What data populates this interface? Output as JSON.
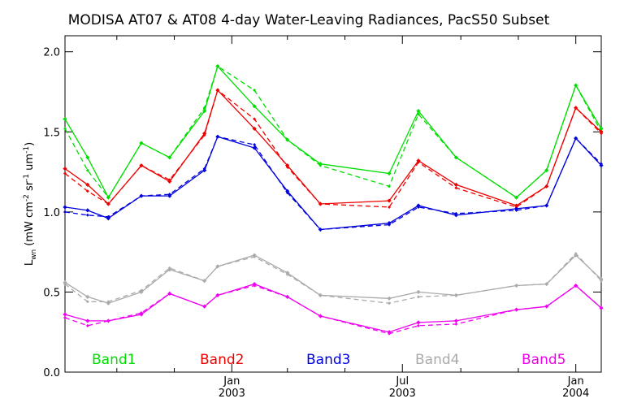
{
  "chart_data": {
    "type": "line",
    "title": "MODISA AT07 & AT08 4-day Water-Leaving Radiances, PacS50 Subset",
    "ylabel": "L_wn (mW cm^-2 sr^-1 um^-1)",
    "ylabel_parts": {
      "main": "L",
      "sub": "wn",
      "open": " (mW cm",
      "sup1": "-2",
      "mid1": " sr",
      "sup2": "-1",
      "mid2": " um",
      "sup3": "-1",
      "close": ")"
    },
    "xlim": [
      "2002-07-08",
      "2004-01-28"
    ],
    "ylim": [
      0.0,
      2.1
    ],
    "y_ticks": [
      {
        "value": 0.0,
        "label": "0.0"
      },
      {
        "value": 0.5,
        "label": "0.5"
      },
      {
        "value": 1.0,
        "label": "1.0"
      },
      {
        "value": 1.5,
        "label": "1.5"
      },
      {
        "value": 2.0,
        "label": "2.0"
      }
    ],
    "x_major_ticks": [
      {
        "date": "2003-01-01",
        "month": "Jan",
        "year": "2003"
      },
      {
        "date": "2003-07-01",
        "month": "Jul",
        "year": "2003"
      },
      {
        "date": "2004-01-01",
        "month": "Jan",
        "year": "2004"
      }
    ],
    "x_minor_ticks": [
      "2002-09-01",
      "2002-11-01",
      "2003-03-01",
      "2003-05-01",
      "2003-09-01",
      "2003-11-01"
    ],
    "grid": false,
    "legend_position": "bottom",
    "series": [
      {
        "name": "Band1",
        "color": "#00dd00",
        "solid": [
          [
            "2002-07-08",
            1.58
          ],
          [
            "2002-08-01",
            1.34
          ],
          [
            "2002-08-23",
            1.09
          ],
          [
            "2002-09-27",
            1.43
          ],
          [
            "2002-10-27",
            1.34
          ],
          [
            "2002-12-03",
            1.63
          ],
          [
            "2002-12-17",
            1.91
          ],
          [
            "2003-01-25",
            1.66
          ],
          [
            "2003-03-01",
            1.45
          ],
          [
            "2003-04-05",
            1.3
          ],
          [
            "2003-06-17",
            1.24
          ],
          [
            "2003-07-18",
            1.63
          ],
          [
            "2003-08-27",
            1.34
          ],
          [
            "2003-10-30",
            1.09
          ],
          [
            "2003-12-01",
            1.26
          ],
          [
            "2004-01-01",
            1.79
          ],
          [
            "2004-01-28",
            1.52
          ]
        ],
        "dashed": [
          [
            "2002-07-08",
            1.52
          ],
          [
            "2002-08-01",
            1.26
          ],
          [
            "2002-08-23",
            1.09
          ],
          [
            "2002-09-27",
            1.43
          ],
          [
            "2002-10-27",
            1.34
          ],
          [
            "2002-12-03",
            1.65
          ],
          [
            "2002-12-17",
            1.91
          ],
          [
            "2003-01-25",
            1.76
          ],
          [
            "2003-03-01",
            1.45
          ],
          [
            "2003-04-05",
            1.29
          ],
          [
            "2003-06-17",
            1.16
          ],
          [
            "2003-07-18",
            1.61
          ],
          [
            "2003-08-27",
            1.34
          ],
          [
            "2003-10-30",
            1.09
          ],
          [
            "2003-12-01",
            1.26
          ],
          [
            "2004-01-01",
            1.79
          ],
          [
            "2004-01-28",
            1.5
          ]
        ]
      },
      {
        "name": "Band2",
        "color": "#ee0000",
        "solid": [
          [
            "2002-07-08",
            1.27
          ],
          [
            "2002-08-01",
            1.17
          ],
          [
            "2002-08-23",
            1.05
          ],
          [
            "2002-09-27",
            1.29
          ],
          [
            "2002-10-27",
            1.19
          ],
          [
            "2002-12-03",
            1.49
          ],
          [
            "2002-12-17",
            1.76
          ],
          [
            "2003-01-25",
            1.52
          ],
          [
            "2003-03-01",
            1.29
          ],
          [
            "2003-04-05",
            1.05
          ],
          [
            "2003-06-17",
            1.07
          ],
          [
            "2003-07-18",
            1.32
          ],
          [
            "2003-08-27",
            1.17
          ],
          [
            "2003-10-30",
            1.04
          ],
          [
            "2003-12-01",
            1.16
          ],
          [
            "2004-01-01",
            1.65
          ],
          [
            "2004-01-28",
            1.5
          ]
        ],
        "dashed": [
          [
            "2002-07-08",
            1.24
          ],
          [
            "2002-08-01",
            1.13
          ],
          [
            "2002-08-23",
            1.05
          ],
          [
            "2002-09-27",
            1.29
          ],
          [
            "2002-10-27",
            1.2
          ],
          [
            "2002-12-03",
            1.48
          ],
          [
            "2002-12-17",
            1.76
          ],
          [
            "2003-01-25",
            1.58
          ],
          [
            "2003-03-01",
            1.28
          ],
          [
            "2003-04-05",
            1.05
          ],
          [
            "2003-06-17",
            1.03
          ],
          [
            "2003-07-18",
            1.31
          ],
          [
            "2003-08-27",
            1.15
          ],
          [
            "2003-10-30",
            1.03
          ],
          [
            "2003-12-01",
            1.16
          ],
          [
            "2004-01-01",
            1.65
          ],
          [
            "2004-01-28",
            1.49
          ]
        ]
      },
      {
        "name": "Band3",
        "color": "#0000dd",
        "solid": [
          [
            "2002-07-08",
            1.03
          ],
          [
            "2002-08-01",
            1.01
          ],
          [
            "2002-08-23",
            0.96
          ],
          [
            "2002-09-27",
            1.1
          ],
          [
            "2002-10-27",
            1.1
          ],
          [
            "2002-12-03",
            1.26
          ],
          [
            "2002-12-17",
            1.47
          ],
          [
            "2003-01-25",
            1.4
          ],
          [
            "2003-03-01",
            1.13
          ],
          [
            "2003-04-05",
            0.89
          ],
          [
            "2003-06-17",
            0.93
          ],
          [
            "2003-07-18",
            1.04
          ],
          [
            "2003-08-27",
            0.98
          ],
          [
            "2003-10-30",
            1.02
          ],
          [
            "2003-12-01",
            1.04
          ],
          [
            "2004-01-01",
            1.46
          ],
          [
            "2004-01-28",
            1.29
          ]
        ],
        "dashed": [
          [
            "2002-07-08",
            1.0
          ],
          [
            "2002-08-01",
            0.98
          ],
          [
            "2002-08-23",
            0.97
          ],
          [
            "2002-09-27",
            1.1
          ],
          [
            "2002-10-27",
            1.11
          ],
          [
            "2002-12-03",
            1.27
          ],
          [
            "2002-12-17",
            1.47
          ],
          [
            "2003-01-25",
            1.42
          ],
          [
            "2003-03-01",
            1.12
          ],
          [
            "2003-04-05",
            0.89
          ],
          [
            "2003-06-17",
            0.92
          ],
          [
            "2003-07-18",
            1.03
          ],
          [
            "2003-08-27",
            0.99
          ],
          [
            "2003-10-30",
            1.01
          ],
          [
            "2003-12-01",
            1.04
          ],
          [
            "2004-01-01",
            1.46
          ],
          [
            "2004-01-28",
            1.3
          ]
        ]
      },
      {
        "name": "Band4",
        "color": "#aaaaaa",
        "solid": [
          [
            "2002-07-08",
            0.56
          ],
          [
            "2002-08-01",
            0.47
          ],
          [
            "2002-08-23",
            0.43
          ],
          [
            "2002-09-27",
            0.5
          ],
          [
            "2002-10-27",
            0.64
          ],
          [
            "2002-12-03",
            0.57
          ],
          [
            "2002-12-17",
            0.66
          ],
          [
            "2003-01-25",
            0.73
          ],
          [
            "2003-03-01",
            0.62
          ],
          [
            "2003-04-05",
            0.48
          ],
          [
            "2003-06-17",
            0.46
          ],
          [
            "2003-07-18",
            0.5
          ],
          [
            "2003-08-27",
            0.48
          ],
          [
            "2003-10-30",
            0.54
          ],
          [
            "2003-12-01",
            0.55
          ],
          [
            "2004-01-01",
            0.73
          ],
          [
            "2004-01-28",
            0.58
          ]
        ],
        "dashed": [
          [
            "2002-07-08",
            0.55
          ],
          [
            "2002-08-01",
            0.44
          ],
          [
            "2002-08-23",
            0.44
          ],
          [
            "2002-09-27",
            0.51
          ],
          [
            "2002-10-27",
            0.65
          ],
          [
            "2002-12-03",
            0.57
          ],
          [
            "2002-12-17",
            0.66
          ],
          [
            "2003-01-25",
            0.72
          ],
          [
            "2003-03-01",
            0.61
          ],
          [
            "2003-04-05",
            0.48
          ],
          [
            "2003-06-17",
            0.43
          ],
          [
            "2003-07-18",
            0.47
          ],
          [
            "2003-08-27",
            0.48
          ],
          [
            "2003-10-30",
            0.54
          ],
          [
            "2003-12-01",
            0.55
          ],
          [
            "2004-01-01",
            0.74
          ],
          [
            "2004-01-28",
            0.57
          ]
        ]
      },
      {
        "name": "Band5",
        "color": "#ee00ee",
        "solid": [
          [
            "2002-07-08",
            0.36
          ],
          [
            "2002-08-01",
            0.32
          ],
          [
            "2002-08-23",
            0.32
          ],
          [
            "2002-09-27",
            0.36
          ],
          [
            "2002-10-27",
            0.49
          ],
          [
            "2002-12-03",
            0.41
          ],
          [
            "2002-12-17",
            0.48
          ],
          [
            "2003-01-25",
            0.55
          ],
          [
            "2003-03-01",
            0.47
          ],
          [
            "2003-04-05",
            0.35
          ],
          [
            "2003-06-17",
            0.25
          ],
          [
            "2003-07-18",
            0.31
          ],
          [
            "2003-08-27",
            0.32
          ],
          [
            "2003-10-30",
            0.39
          ],
          [
            "2003-12-01",
            0.41
          ],
          [
            "2004-01-01",
            0.54
          ],
          [
            "2004-01-28",
            0.4
          ]
        ],
        "dashed": [
          [
            "2002-07-08",
            0.34
          ],
          [
            "2002-08-01",
            0.29
          ],
          [
            "2002-08-23",
            0.32
          ],
          [
            "2002-09-27",
            0.37
          ],
          [
            "2002-10-27",
            0.49
          ],
          [
            "2002-12-03",
            0.41
          ],
          [
            "2002-12-17",
            0.48
          ],
          [
            "2003-01-25",
            0.54
          ],
          [
            "2003-03-01",
            0.47
          ],
          [
            "2003-04-05",
            0.35
          ],
          [
            "2003-06-17",
            0.24
          ],
          [
            "2003-07-18",
            0.29
          ],
          [
            "2003-08-27",
            0.3
          ],
          [
            "2003-10-30",
            0.39
          ],
          [
            "2003-12-01",
            0.41
          ],
          [
            "2004-01-01",
            0.54
          ],
          [
            "2004-01-28",
            0.4
          ]
        ]
      }
    ]
  }
}
